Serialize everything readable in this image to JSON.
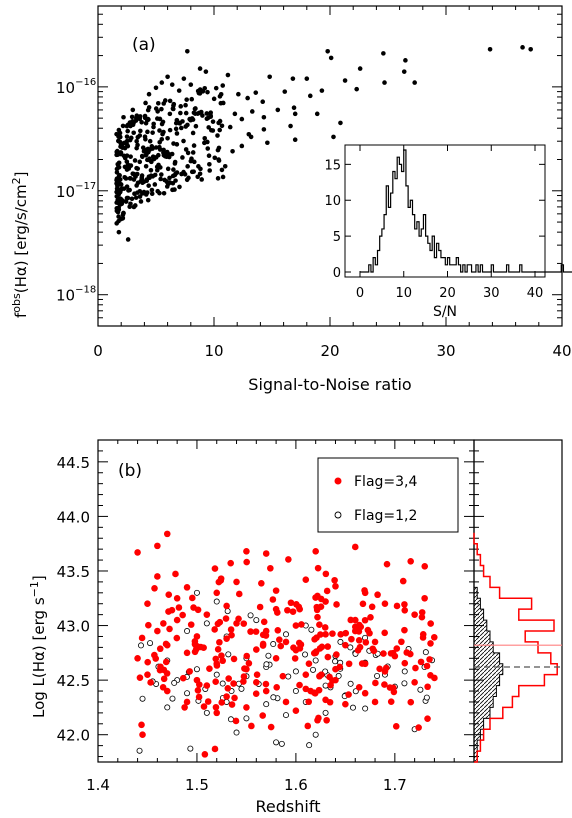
{
  "chart_data": [
    {
      "type": "scatter",
      "panel_label": "(a)",
      "xlabel": "Signal-to-Noise ratio",
      "ylabel_main": "f",
      "ylabel_sup": "obs",
      "ylabel_rest": "(Hα) [erg/s/cm",
      "ylabel_sup2": "2",
      "ylabel_end": "]",
      "xlim": [
        0,
        40
      ],
      "ylim": [
        5e-19,
        6e-16
      ],
      "yscale": "log",
      "xticks": [
        0,
        10,
        20,
        30,
        40
      ],
      "yticks": [
        {
          "value": 1e-18,
          "base": "10",
          "exp": "−18"
        },
        {
          "value": 1e-17,
          "base": "10",
          "exp": "−17"
        },
        {
          "value": 1e-16,
          "base": "10",
          "exp": "−16"
        }
      ],
      "marker_color": "#000000",
      "points_sample": [
        [
          7.7,
          2.2e-16
        ],
        [
          19.8,
          2.2e-16
        ],
        [
          24.6,
          2.1e-16
        ],
        [
          33.8,
          2.3e-16
        ],
        [
          36.6,
          2.4e-16
        ],
        [
          37.3,
          2.3e-16
        ],
        [
          20.1,
          1.9e-16
        ],
        [
          26.5,
          1.8e-16
        ],
        [
          22.6,
          1.5e-16
        ],
        [
          26.4,
          1.4e-16
        ],
        [
          8.8,
          1.5e-16
        ],
        [
          9.3,
          1.4e-16
        ],
        [
          11.2,
          1.3e-16
        ],
        [
          14.8,
          1.25e-16
        ],
        [
          16.8,
          1.2e-16
        ],
        [
          18.0,
          1.2e-16
        ],
        [
          21.3,
          1.15e-16
        ],
        [
          24.7,
          1.1e-16
        ],
        [
          27.3,
          1.1e-16
        ],
        [
          22.3,
          9.5e-17
        ],
        [
          19.3,
          9.2e-17
        ],
        [
          16.1,
          9e-17
        ],
        [
          13.6,
          8.8e-17
        ],
        [
          12.1,
          8.5e-17
        ],
        [
          18.3,
          8.2e-17
        ],
        [
          12.9,
          7.8e-17
        ],
        [
          14.2,
          7.2e-17
        ],
        [
          10.8,
          7e-17
        ],
        [
          16.9,
          6.3e-17
        ],
        [
          15.5,
          6e-17
        ],
        [
          13.3,
          5.8e-17
        ],
        [
          11.8,
          5.5e-17
        ],
        [
          17.0,
          5.5e-17
        ],
        [
          18.9,
          5.5e-17
        ],
        [
          14.3,
          5.1e-17
        ],
        [
          12.4,
          4.9e-17
        ],
        [
          10.4,
          4.5e-17
        ],
        [
          20.9,
          4.5e-17
        ],
        [
          16.6,
          4.2e-17
        ],
        [
          11.4,
          4.1e-17
        ],
        [
          14.3,
          3.9e-17
        ],
        [
          9.9,
          3.8e-17
        ],
        [
          13.0,
          3.5e-17
        ],
        [
          10.3,
          3.4e-17
        ],
        [
          13.2,
          3.3e-17
        ],
        [
          9.2,
          3.2e-17
        ],
        [
          1.8,
          4e-18
        ],
        [
          2.2,
          6.1e-18
        ],
        [
          2.6,
          3.4e-18
        ],
        [
          2.8,
          7.5e-18
        ],
        [
          3.4,
          9.6e-18
        ],
        [
          2.0,
          1.15e-17
        ],
        [
          2.3,
          1.35e-17
        ],
        [
          1.7,
          1.8e-17
        ],
        [
          2.5,
          1.6e-17
        ],
        [
          3.1,
          1.45e-17
        ],
        [
          3.6,
          1.9e-17
        ],
        [
          3.8,
          1.4e-17
        ],
        [
          4.2,
          1.25e-17
        ],
        [
          4.9,
          1.15e-17
        ],
        [
          5.4,
          1.3e-17
        ],
        [
          6.2,
          1.2e-17
        ],
        [
          5.1,
          1.7e-17
        ],
        [
          4.6,
          1.9e-17
        ],
        [
          6.5,
          1.6e-17
        ],
        [
          7.2,
          1.45e-17
        ],
        [
          8.3,
          1.9e-17
        ],
        [
          9.6,
          1.8e-17
        ],
        [
          10.4,
          2e-17
        ],
        [
          11.6,
          2.4e-17
        ],
        [
          12.4,
          2.7e-17
        ],
        [
          14.6,
          2.9e-17
        ],
        [
          17.0,
          3.1e-17
        ],
        [
          20.3,
          3.3e-17
        ],
        [
          2.1,
          2.6e-17
        ],
        [
          2.5,
          3e-17
        ],
        [
          1.9,
          3.6e-17
        ],
        [
          2.8,
          4.2e-17
        ],
        [
          2.2,
          5.1e-17
        ],
        [
          3.0,
          6e-17
        ],
        [
          3.3,
          5e-17
        ],
        [
          3.6,
          3.4e-17
        ],
        [
          3.9,
          2.6e-17
        ],
        [
          4.1,
          7e-17
        ],
        [
          4.4,
          8.5e-17
        ],
        [
          5.0,
          9.8e-17
        ],
        [
          5.5,
          1.1e-16
        ],
        [
          6.0,
          1.25e-16
        ],
        [
          6.4,
          1.05e-16
        ],
        [
          7.0,
          9.2e-17
        ],
        [
          7.4,
          1.2e-16
        ],
        [
          8.0,
          1.05e-16
        ],
        [
          8.7,
          8.7e-17
        ],
        [
          9.2,
          9.7e-17
        ],
        [
          5.8,
          7.4e-17
        ],
        [
          6.5,
          6.6e-17
        ],
        [
          7.1,
          5.6e-17
        ],
        [
          7.9,
          4.9e-17
        ],
        [
          8.4,
          6.2e-17
        ],
        [
          9.0,
          5.3e-17
        ],
        [
          4.8,
          4.4e-17
        ],
        [
          5.3,
          3.8e-17
        ],
        [
          6.0,
          3.2e-17
        ],
        [
          6.8,
          2.8e-17
        ],
        [
          7.6,
          2.5e-17
        ],
        [
          8.2,
          3.6e-17
        ],
        [
          4.5,
          3e-17
        ],
        [
          5.2,
          2.2e-17
        ]
      ],
      "inset": {
        "type": "histogram",
        "xlabel": "S/N",
        "xlim": [
          0,
          40
        ],
        "ylim": [
          0,
          17
        ],
        "xticks": [
          0,
          10,
          20,
          30,
          40
        ],
        "yticks": [
          0,
          5,
          10,
          15
        ],
        "bin_width": 0.5,
        "counts": [
          0,
          0,
          0,
          0,
          1,
          0,
          2,
          1,
          3,
          5,
          6,
          8,
          12,
          9,
          11,
          14,
          13,
          16,
          15,
          14,
          17,
          12,
          9,
          10,
          8,
          6,
          7,
          5,
          6,
          8,
          5,
          4,
          3,
          5,
          2,
          4,
          3,
          2,
          2,
          1,
          2,
          1,
          1,
          1,
          2,
          1,
          0,
          1,
          0,
          1,
          1,
          0,
          0,
          1,
          0,
          1,
          0,
          0,
          0,
          0,
          1,
          0,
          0,
          0,
          0,
          0,
          0,
          1,
          0,
          0,
          0,
          0,
          0,
          1,
          0,
          0,
          0,
          0,
          0,
          0,
          0,
          0,
          0,
          0,
          0,
          0,
          0,
          0,
          0,
          0,
          0,
          0,
          1,
          0,
          0,
          0,
          0,
          0,
          0,
          0,
          0,
          0,
          0,
          0,
          0,
          0,
          0,
          0,
          0,
          1,
          0,
          0,
          0,
          0,
          0,
          0,
          1,
          0,
          0,
          0
        ]
      }
    },
    {
      "type": "scatter",
      "panel_label": "(b)",
      "xlabel": "Redshift",
      "ylabel": "Log L(Hα) [erg s",
      "ylabel_sup": "−1",
      "ylabel_end": "]",
      "xlim": [
        1.4,
        1.78
      ],
      "ylim": [
        41.75,
        44.7
      ],
      "xticks": [
        1.4,
        1.5,
        1.6,
        1.7
      ],
      "yticks": [
        42.0,
        42.5,
        43.0,
        43.5,
        44.0,
        44.5
      ],
      "series": [
        {
          "name": "Flag=3,4",
          "color": "#ff0000",
          "marker": "filled-circle",
          "points_sample": [
            [
              1.44,
              43.67
            ],
            [
              1.47,
              43.84
            ],
            [
              1.46,
              43.73
            ],
            [
              1.55,
              43.68
            ],
            [
              1.57,
              43.66
            ],
            [
              1.62,
              43.68
            ],
            [
              1.66,
              43.72
            ],
            [
              1.445,
              42.0
            ],
            [
              1.508,
              41.82
            ],
            [
              1.555,
              42.08
            ],
            [
              1.575,
              42.07
            ],
            [
              1.612,
              42.08
            ],
            [
              1.45,
              43.2
            ],
            [
              1.49,
              43.35
            ],
            [
              1.52,
              43.3
            ],
            [
              1.54,
              43.4
            ],
            [
              1.58,
              43.32
            ],
            [
              1.61,
              43.42
            ],
            [
              1.64,
              43.36
            ],
            [
              1.67,
              43.3
            ],
            [
              1.69,
              43.2
            ],
            [
              1.71,
              43.14
            ],
            [
              1.72,
              43.1
            ],
            [
              1.44,
              42.7
            ],
            [
              1.45,
              42.55
            ],
            [
              1.46,
              42.95
            ],
            [
              1.47,
              42.82
            ],
            [
              1.48,
              43.05
            ],
            [
              1.49,
              42.75
            ],
            [
              1.5,
              42.9
            ],
            [
              1.51,
              43.1
            ],
            [
              1.52,
              42.65
            ],
            [
              1.53,
              42.88
            ],
            [
              1.54,
              43.02
            ],
            [
              1.55,
              42.6
            ],
            [
              1.56,
              42.78
            ],
            [
              1.57,
              42.95
            ],
            [
              1.58,
              42.7
            ],
            [
              1.59,
              42.85
            ],
            [
              1.6,
              43.0
            ],
            [
              1.61,
              42.55
            ],
            [
              1.62,
              42.75
            ],
            [
              1.63,
              42.92
            ],
            [
              1.64,
              42.6
            ],
            [
              1.65,
              42.82
            ],
            [
              1.66,
              42.95
            ],
            [
              1.67,
              42.65
            ],
            [
              1.68,
              42.85
            ],
            [
              1.69,
              42.58
            ],
            [
              1.7,
              42.72
            ],
            [
              1.72,
              42.48
            ],
            [
              1.74,
              42.52
            ],
            [
              1.47,
              42.4
            ],
            [
              1.49,
              42.3
            ],
            [
              1.51,
              42.45
            ],
            [
              1.53,
              42.35
            ],
            [
              1.55,
              42.25
            ],
            [
              1.57,
              42.4
            ],
            [
              1.59,
              42.3
            ],
            [
              1.61,
              42.42
            ],
            [
              1.63,
              42.32
            ],
            [
              1.65,
              42.28
            ],
            [
              1.67,
              42.38
            ],
            [
              1.5,
              42.5
            ],
            [
              1.52,
              42.2
            ],
            [
              1.56,
              42.48
            ],
            [
              1.6,
              42.22
            ],
            [
              1.64,
              42.5
            ],
            [
              1.68,
              42.3
            ],
            [
              1.48,
              43.25
            ],
            [
              1.53,
              43.18
            ],
            [
              1.58,
              43.15
            ],
            [
              1.63,
              43.22
            ],
            [
              1.66,
              43.05
            ],
            [
              1.46,
              43.45
            ]
          ]
        },
        {
          "name": "Flag=1,2",
          "color": "#000000",
          "marker": "open-circle",
          "points_sample": [
            [
              1.445,
              42.33
            ],
            [
              1.47,
              42.25
            ],
            [
              1.49,
              42.38
            ],
            [
              1.51,
              42.2
            ],
            [
              1.53,
              42.3
            ],
            [
              1.55,
              42.15
            ],
            [
              1.57,
              42.28
            ],
            [
              1.59,
              42.18
            ],
            [
              1.61,
              42.3
            ],
            [
              1.63,
              42.2
            ],
            [
              1.65,
              42.36
            ],
            [
              1.67,
              42.24
            ],
            [
              1.7,
              42.44
            ],
            [
              1.72,
              42.05
            ],
            [
              1.58,
              41.93
            ],
            [
              1.54,
              42.02
            ],
            [
              1.62,
              42.0
            ],
            [
              1.48,
              42.5
            ],
            [
              1.5,
              42.6
            ],
            [
              1.52,
              42.55
            ],
            [
              1.55,
              42.7
            ],
            [
              1.57,
              42.62
            ],
            [
              1.6,
              42.58
            ],
            [
              1.62,
              42.68
            ],
            [
              1.64,
              42.72
            ],
            [
              1.645,
              42.85
            ],
            [
              1.65,
              42.93
            ],
            [
              1.655,
              42.8
            ],
            [
              1.66,
              42.75
            ],
            [
              1.67,
              42.66
            ],
            [
              1.69,
              42.55
            ],
            [
              1.71,
              42.58
            ],
            [
              1.73,
              42.62
            ],
            [
              1.49,
              42.95
            ],
            [
              1.51,
              43.02
            ],
            [
              1.53,
              42.9
            ],
            [
              1.56,
              43.05
            ],
            [
              1.59,
              42.92
            ],
            [
              1.61,
              43.0
            ],
            [
              1.5,
              43.3
            ],
            [
              1.52,
              43.22
            ],
            [
              1.63,
              42.45
            ],
            [
              1.545,
              42.42
            ],
            [
              1.6,
              42.4
            ],
            [
              1.47,
              42.68
            ]
          ]
        }
      ],
      "side_histogram": {
        "red_line_value": 42.82,
        "dashed_line_value": 42.62,
        "bin_edges_start": 41.75,
        "bin_width": 0.1,
        "red_counts": [
          1,
          2,
          3,
          5,
          9,
          12,
          14,
          22,
          26,
          24,
          20,
          16,
          25,
          14,
          18,
          8,
          5,
          3,
          2,
          1,
          0
        ],
        "hatched_counts": [
          1,
          1,
          2,
          3,
          5,
          6,
          7,
          8,
          9,
          8,
          6,
          5,
          4,
          3,
          2,
          1,
          0,
          0,
          0,
          0,
          0
        ]
      }
    }
  ]
}
